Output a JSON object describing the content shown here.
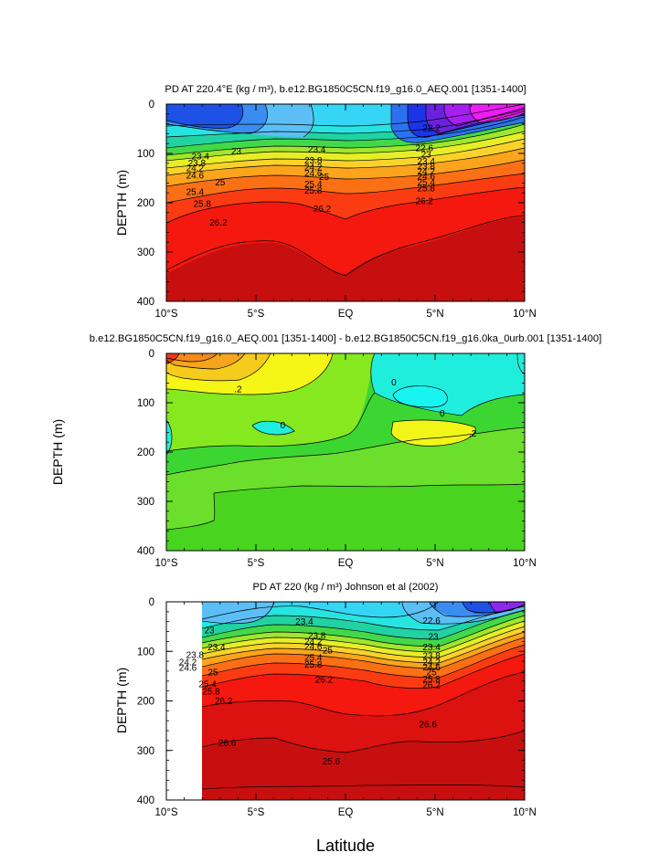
{
  "figure": {
    "shared_xlabel": "Latitude",
    "shared_ylabel": "DEPTH (m)"
  },
  "chart_data": [
    {
      "type": "heatmap",
      "title": "PD AT 220.4°E (kg / m³), b.e12.BG1850C5CN.f19_g16.0_AEQ.001 [1351-1400]",
      "ylabel": "DEPTH (m)",
      "xlim": [
        -10,
        10
      ],
      "ylim": [
        0,
        400
      ],
      "y_inverted": true,
      "x_ticks": [
        {
          "v": -10,
          "label": "10°S"
        },
        {
          "v": -5,
          "label": "5°S"
        },
        {
          "v": 0,
          "label": "EQ"
        },
        {
          "v": 5,
          "label": "5°N"
        },
        {
          "v": 10,
          "label": "10°N"
        }
      ],
      "y_ticks": [
        {
          "v": 0,
          "label": "0"
        },
        {
          "v": 100,
          "label": "100"
        },
        {
          "v": 200,
          "label": "200"
        },
        {
          "v": 300,
          "label": "300"
        },
        {
          "v": 400,
          "label": "400"
        }
      ],
      "contour_labels": [
        {
          "x": -8.1,
          "y": 106,
          "text": "23.4"
        },
        {
          "x": -8.3,
          "y": 119,
          "text": "23.8"
        },
        {
          "x": -8.4,
          "y": 130,
          "text": "24.2"
        },
        {
          "x": -8.4,
          "y": 144,
          "text": "24.6"
        },
        {
          "x": -6.1,
          "y": 95,
          "text": "23"
        },
        {
          "x": -7.0,
          "y": 158,
          "text": "25"
        },
        {
          "x": -8.4,
          "y": 178,
          "text": "25.4"
        },
        {
          "x": -8.0,
          "y": 202,
          "text": "25.8"
        },
        {
          "x": -7.1,
          "y": 240,
          "text": "26.2"
        },
        {
          "x": -1.6,
          "y": 92,
          "text": "23.4"
        },
        {
          "x": -1.8,
          "y": 114,
          "text": "23.8"
        },
        {
          "x": -1.8,
          "y": 128,
          "text": "24.2"
        },
        {
          "x": -1.8,
          "y": 140,
          "text": "24.6"
        },
        {
          "x": -1.2,
          "y": 147,
          "text": "25"
        },
        {
          "x": -1.8,
          "y": 162,
          "text": "25.4"
        },
        {
          "x": -1.8,
          "y": 175,
          "text": "25.8"
        },
        {
          "x": -1.3,
          "y": 212,
          "text": "26.2"
        },
        {
          "x": 4.4,
          "y": 89,
          "text": "22.6"
        },
        {
          "x": 4.5,
          "y": 102,
          "text": "23"
        },
        {
          "x": 4.5,
          "y": 116,
          "text": "23.4"
        },
        {
          "x": 4.5,
          "y": 126,
          "text": "23.8"
        },
        {
          "x": 4.5,
          "y": 136,
          "text": "24.2"
        },
        {
          "x": 4.5,
          "y": 146,
          "text": "24.6"
        },
        {
          "x": 4.5,
          "y": 158,
          "text": "25.4"
        },
        {
          "x": 4.5,
          "y": 170,
          "text": "25.8"
        },
        {
          "x": 4.4,
          "y": 196,
          "text": "26.2"
        },
        {
          "x": 4.8,
          "y": 48,
          "text": "22.2"
        }
      ]
    },
    {
      "type": "heatmap",
      "title": "b.e12.BG1850C5CN.f19_g16.0_AEQ.001 [1351-1400] - b.e12.BG1850C5CN.f19_g16.0ka_0urb.001 [1351-1400]",
      "ylabel": "DEPTH (m)",
      "xlim": [
        -10,
        10
      ],
      "ylim": [
        0,
        400
      ],
      "y_inverted": true,
      "x_ticks": [
        {
          "v": -10,
          "label": "10°S"
        },
        {
          "v": -5,
          "label": "5°S"
        },
        {
          "v": 0,
          "label": "EQ"
        },
        {
          "v": 5,
          "label": "5°N"
        },
        {
          "v": 10,
          "label": "10°N"
        }
      ],
      "y_ticks": [
        {
          "v": 0,
          "label": "0"
        },
        {
          "v": 100,
          "label": "100"
        },
        {
          "v": 200,
          "label": "200"
        },
        {
          "v": 300,
          "label": "300"
        },
        {
          "v": 400,
          "label": "400"
        }
      ],
      "contour_labels": [
        {
          "x": -6.0,
          "y": 72,
          "text": ".2"
        },
        {
          "x": -3.5,
          "y": 145,
          "text": "0"
        },
        {
          "x": 2.7,
          "y": 58,
          "text": "0"
        },
        {
          "x": 5.4,
          "y": 121,
          "text": "0"
        },
        {
          "x": 7.1,
          "y": 162,
          "text": ".2"
        }
      ]
    },
    {
      "type": "heatmap",
      "title": "PD AT 220 (kg / m³) Johnson et al (2002)",
      "ylabel": "DEPTH (m)",
      "xlim": [
        -10,
        10
      ],
      "ylim": [
        0,
        400
      ],
      "y_inverted": true,
      "data_xlim": [
        -8,
        10
      ],
      "x_ticks": [
        {
          "v": -10,
          "label": "10°S"
        },
        {
          "v": -5,
          "label": "5°S"
        },
        {
          "v": 0,
          "label": "EQ"
        },
        {
          "v": 5,
          "label": "5°N"
        },
        {
          "v": 10,
          "label": "10°N"
        }
      ],
      "y_ticks": [
        {
          "v": 0,
          "label": "0"
        },
        {
          "v": 100,
          "label": "100"
        },
        {
          "v": 200,
          "label": "200"
        },
        {
          "v": 300,
          "label": "300"
        },
        {
          "v": 400,
          "label": "400"
        }
      ],
      "contour_labels": [
        {
          "x": -7.6,
          "y": 57,
          "text": "23"
        },
        {
          "x": -7.2,
          "y": 91,
          "text": "23.4"
        },
        {
          "x": -8.4,
          "y": 107,
          "text": "23.8"
        },
        {
          "x": -8.8,
          "y": 122,
          "text": "24.2"
        },
        {
          "x": -8.8,
          "y": 133,
          "text": "24.6"
        },
        {
          "x": -7.4,
          "y": 142,
          "text": "25"
        },
        {
          "x": -7.7,
          "y": 166,
          "text": "25.4"
        },
        {
          "x": -7.5,
          "y": 181,
          "text": "25.8"
        },
        {
          "x": -6.8,
          "y": 200,
          "text": "26.2"
        },
        {
          "x": -6.6,
          "y": 285,
          "text": "26.6"
        },
        {
          "x": -2.3,
          "y": 40,
          "text": "23.4"
        },
        {
          "x": -1.6,
          "y": 68,
          "text": "23.8"
        },
        {
          "x": -1.8,
          "y": 80,
          "text": "24.2"
        },
        {
          "x": -1.8,
          "y": 90,
          "text": "24.6"
        },
        {
          "x": -1.0,
          "y": 98,
          "text": "25"
        },
        {
          "x": -1.8,
          "y": 112,
          "text": "25.4"
        },
        {
          "x": -1.8,
          "y": 126,
          "text": "25.8"
        },
        {
          "x": -1.2,
          "y": 157,
          "text": "26.2"
        },
        {
          "x": -0.8,
          "y": 322,
          "text": "25.6"
        },
        {
          "x": 4.8,
          "y": 38,
          "text": "22.6"
        },
        {
          "x": 4.9,
          "y": 70,
          "text": "23"
        },
        {
          "x": 4.8,
          "y": 91,
          "text": "23.4"
        },
        {
          "x": 4.8,
          "y": 109,
          "text": "23.8"
        },
        {
          "x": 4.8,
          "y": 122,
          "text": "24.2"
        },
        {
          "x": 4.8,
          "y": 132,
          "text": "24.6"
        },
        {
          "x": 4.8,
          "y": 142,
          "text": "25"
        },
        {
          "x": 4.8,
          "y": 156,
          "text": "25.8"
        },
        {
          "x": 4.8,
          "y": 168,
          "text": "26.2"
        },
        {
          "x": 4.6,
          "y": 247,
          "text": "26.6"
        }
      ]
    }
  ]
}
